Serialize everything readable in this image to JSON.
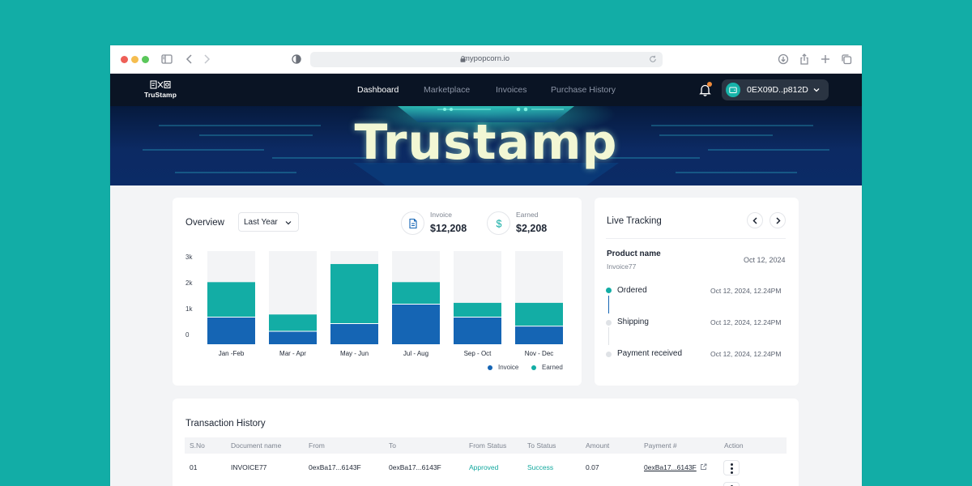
{
  "browser": {
    "url": "mypopcorn.io",
    "traffic_lights": [
      "#ee5f57",
      "#f5bd4f",
      "#5ac75a"
    ]
  },
  "app": {
    "logo_text": "TruStamp",
    "nav": [
      {
        "label": "Dashboard",
        "active": true
      },
      {
        "label": "Marketplace",
        "active": false
      },
      {
        "label": "Invoices",
        "active": false
      },
      {
        "label": "Purchase History",
        "active": false
      }
    ],
    "notification_icon": "bell-icon",
    "wallet_address": "0EX09D..p812D"
  },
  "banner": {
    "title": "Trustamp"
  },
  "overview": {
    "title": "Overview",
    "period_select": "Last Year",
    "stats": {
      "invoice_label": "Invoice",
      "invoice_value": "$12,208",
      "earned_label": "Earned",
      "earned_value": "$2,208"
    }
  },
  "chart_data": {
    "type": "bar",
    "stacked": true,
    "categories": [
      "Jan -Feb",
      "Mar - Apr",
      "May - Jun",
      "Jul - Aug",
      "Sep - Oct",
      "Nov - Dec"
    ],
    "series": [
      {
        "name": "Invoice",
        "color": "#1565b4",
        "values": [
          1050,
          500,
          800,
          1550,
          1050,
          700
        ]
      },
      {
        "name": "Earned",
        "color": "#13ada5",
        "values": [
          1350,
          650,
          2300,
          850,
          550,
          900
        ]
      }
    ],
    "capacity": 3600,
    "y_ticks": [
      "3k",
      "2k",
      "1k",
      "0"
    ],
    "y_tick_values": [
      3000,
      2000,
      1000,
      0
    ],
    "ylim": [
      0,
      3600
    ],
    "legend_position": "bottom-right"
  },
  "tracking": {
    "title": "Live Tracking",
    "product_label": "Product name",
    "product_id": "Invoice77",
    "product_date": "Oct 12, 2024",
    "steps": [
      {
        "label": "Ordered",
        "time": "Oct 12, 2024, 12.24PM",
        "done": true
      },
      {
        "label": "Shipping",
        "time": "Oct 12, 2024, 12.24PM",
        "done": false
      },
      {
        "label": "Payment received",
        "time": "Oct 12, 2024, 12.24PM",
        "done": false
      }
    ]
  },
  "history": {
    "title": "Transaction History",
    "columns": [
      "S.No",
      "Document name",
      "From",
      "To",
      "From Status",
      "To Status",
      "Amount",
      "Payment #",
      "Action"
    ],
    "rows": [
      {
        "sno": "01",
        "document": "INVOICE77",
        "from": "0exBa17...6143F",
        "to": "0exBa17...6143F",
        "from_status": "Approved",
        "to_status": "Success",
        "amount": "0.07",
        "payment": "0exBa17...6143F"
      }
    ]
  },
  "colors": {
    "accent": "#13ada5",
    "invoice": "#1565b4",
    "background": "#12ada6",
    "nav": "#0a1424"
  }
}
